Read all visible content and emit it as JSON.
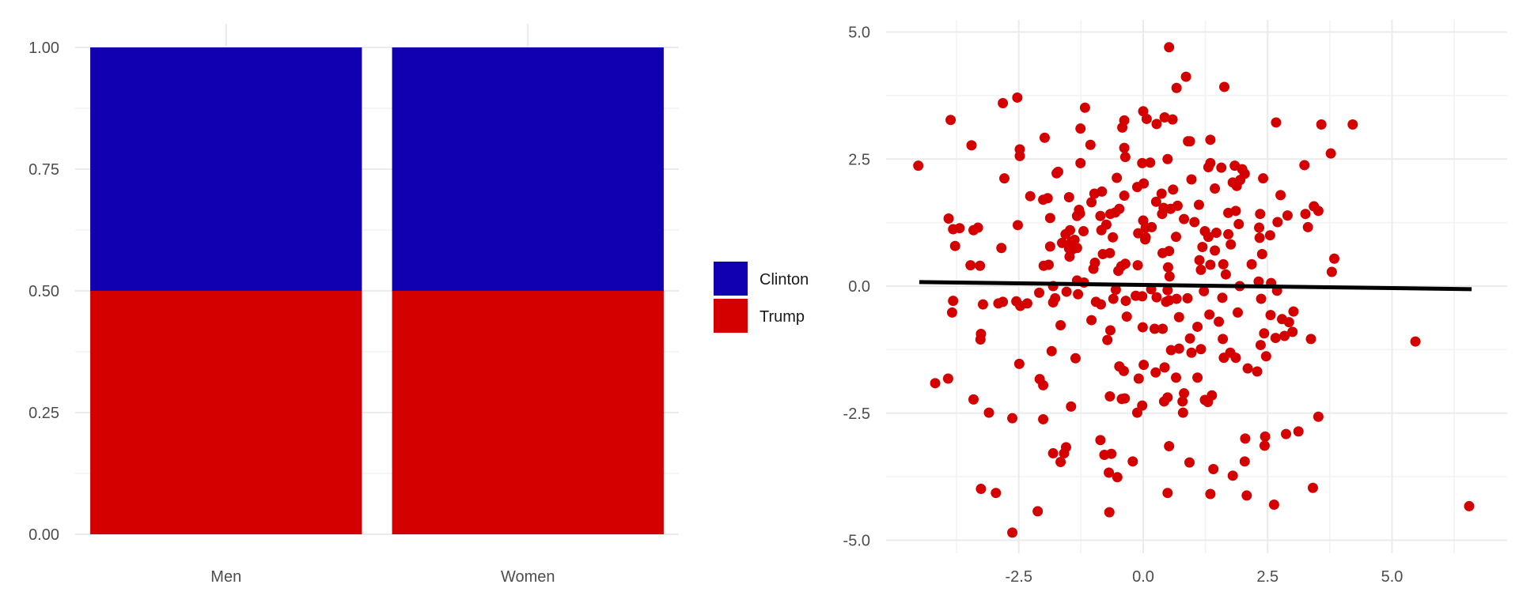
{
  "chart_data": [
    {
      "type": "bar",
      "stacked": true,
      "categories": [
        "Men",
        "Women"
      ],
      "series": [
        {
          "name": "Trump",
          "values": [
            0.5,
            0.5
          ],
          "color": "#d40000"
        },
        {
          "name": "Clinton",
          "values": [
            0.5,
            0.5
          ],
          "color": "#1000b0"
        }
      ],
      "ylim": [
        0,
        1
      ],
      "y_ticks": [
        "0.00",
        "0.25",
        "0.50",
        "0.75",
        "1.00"
      ],
      "x_ticks": [
        "Men",
        "Women"
      ],
      "legend": {
        "position": "right",
        "entries": [
          "Clinton",
          "Trump"
        ]
      },
      "grid": true
    },
    {
      "type": "scatter",
      "xlim": [
        -4.9,
        7.4
      ],
      "ylim": [
        -5.4,
        5.4
      ],
      "x_ticks": [
        "-2.5",
        "0.0",
        "2.5",
        "5.0"
      ],
      "y_ticks": [
        "-5.0",
        "-2.5",
        "0.0",
        "2.5",
        "5.0"
      ],
      "point_color": "#d40000",
      "fit_line": {
        "x": [
          -4.5,
          6.6
        ],
        "y": [
          0.08,
          -0.06
        ],
        "color": "#000000"
      },
      "grid": true,
      "points": [
        [
          0.52,
          4.7
        ],
        [
          0.86,
          4.12
        ],
        [
          1.63,
          3.92
        ],
        [
          0.67,
          3.9
        ],
        [
          -2.53,
          3.71
        ],
        [
          -2.82,
          3.6
        ],
        [
          -1.17,
          3.51
        ],
        [
          0.0,
          3.44
        ],
        [
          0.43,
          3.32
        ],
        [
          0.07,
          3.29
        ],
        [
          0.59,
          3.28
        ],
        [
          -0.38,
          3.26
        ],
        [
          4.21,
          3.18
        ],
        [
          3.58,
          3.18
        ],
        [
          2.67,
          3.22
        ],
        [
          0.27,
          3.19
        ],
        [
          -1.26,
          3.1
        ],
        [
          -0.42,
          3.12
        ],
        [
          -3.87,
          3.27
        ],
        [
          1.35,
          2.88
        ],
        [
          0.9,
          2.85
        ],
        [
          0.94,
          2.85
        ],
        [
          -1.98,
          2.92
        ],
        [
          -0.38,
          2.72
        ],
        [
          -3.45,
          2.77
        ],
        [
          -2.48,
          2.69
        ],
        [
          -1.06,
          2.78
        ],
        [
          -4.52,
          2.37
        ],
        [
          -2.48,
          2.56
        ],
        [
          0.49,
          2.5
        ],
        [
          -0.36,
          2.54
        ],
        [
          3.77,
          2.61
        ],
        [
          -1.26,
          2.42
        ],
        [
          0.14,
          2.43
        ],
        [
          -0.02,
          2.42
        ],
        [
          1.35,
          2.42
        ],
        [
          1.31,
          2.34
        ],
        [
          3.24,
          2.38
        ],
        [
          1.84,
          2.37
        ],
        [
          1.57,
          2.33
        ],
        [
          1.99,
          2.3
        ],
        [
          -1.71,
          2.25
        ],
        [
          2.04,
          2.21
        ],
        [
          -1.74,
          2.22
        ],
        [
          -0.53,
          2.13
        ],
        [
          2.41,
          2.12
        ],
        [
          -2.79,
          2.12
        ],
        [
          0.97,
          2.1
        ],
        [
          1.95,
          2.09
        ],
        [
          1.8,
          2.04
        ],
        [
          0.01,
          2.02
        ],
        [
          -0.12,
          1.95
        ],
        [
          1.88,
          1.97
        ],
        [
          1.44,
          1.92
        ],
        [
          -0.83,
          1.86
        ],
        [
          0.6,
          1.9
        ],
        [
          3.43,
          1.57
        ],
        [
          -2.27,
          1.77
        ],
        [
          -0.98,
          1.82
        ],
        [
          0.37,
          1.82
        ],
        [
          2.76,
          1.79
        ],
        [
          -1.92,
          1.73
        ],
        [
          -2.01,
          1.7
        ],
        [
          -0.38,
          1.78
        ],
        [
          -1.49,
          1.75
        ],
        [
          0.26,
          1.66
        ],
        [
          -1.04,
          1.65
        ],
        [
          1.12,
          1.6
        ],
        [
          0.69,
          1.58
        ],
        [
          0.41,
          1.54
        ],
        [
          0.55,
          1.52
        ],
        [
          -0.48,
          1.52
        ],
        [
          -1.29,
          1.5
        ],
        [
          1.86,
          1.48
        ],
        [
          -0.56,
          1.45
        ],
        [
          3.52,
          1.48
        ],
        [
          1.71,
          1.44
        ],
        [
          -1.27,
          1.43
        ],
        [
          2.35,
          1.42
        ],
        [
          0.38,
          1.42
        ],
        [
          -0.66,
          1.42
        ],
        [
          -1.33,
          1.38
        ],
        [
          2.9,
          1.39
        ],
        [
          -0.86,
          1.38
        ],
        [
          3.26,
          1.42
        ],
        [
          -1.87,
          1.34
        ],
        [
          0.82,
          1.32
        ],
        [
          -3.91,
          1.33
        ],
        [
          -2.52,
          1.2
        ],
        [
          0.0,
          1.29
        ],
        [
          3.31,
          1.16
        ],
        [
          1.92,
          1.22
        ],
        [
          2.7,
          1.26
        ],
        [
          -0.74,
          1.21
        ],
        [
          1.03,
          1.26
        ],
        [
          -3.69,
          1.14
        ],
        [
          -3.41,
          1.1
        ],
        [
          -3.32,
          1.15
        ],
        [
          0.17,
          1.16
        ],
        [
          2.33,
          1.15
        ],
        [
          -3.82,
          1.12
        ],
        [
          0.05,
          1.15
        ],
        [
          -1.2,
          1.08
        ],
        [
          -1.47,
          1.1
        ],
        [
          1.24,
          1.08
        ],
        [
          -0.84,
          1.1
        ],
        [
          -0.1,
          1.04
        ],
        [
          1.71,
          1.02
        ],
        [
          2.55,
          1.0
        ],
        [
          1.47,
          1.05
        ],
        [
          1.31,
          0.97
        ],
        [
          -1.56,
          1.02
        ],
        [
          0.66,
          0.97
        ],
        [
          0.05,
          0.96
        ],
        [
          -0.61,
          0.96
        ],
        [
          2.34,
          0.95
        ],
        [
          -1.38,
          0.91
        ],
        [
          0.04,
          0.92
        ],
        [
          -1.44,
          0.87
        ],
        [
          -1.63,
          0.85
        ],
        [
          -3.78,
          0.79
        ],
        [
          1.76,
          0.82
        ],
        [
          -1.87,
          0.78
        ],
        [
          1.19,
          0.77
        ],
        [
          -1.33,
          0.75
        ],
        [
          -2.85,
          0.75
        ],
        [
          -1.49,
          0.74
        ],
        [
          1.44,
          0.7
        ],
        [
          0.52,
          0.69
        ],
        [
          -1.43,
          0.72
        ],
        [
          0.39,
          0.65
        ],
        [
          -0.67,
          0.65
        ],
        [
          -0.81,
          0.63
        ],
        [
          2.39,
          0.63
        ],
        [
          -1.48,
          0.58
        ],
        [
          3.84,
          0.54
        ],
        [
          1.13,
          0.51
        ],
        [
          -0.97,
          0.46
        ],
        [
          -0.36,
          0.44
        ],
        [
          -1.9,
          0.42
        ],
        [
          1.35,
          0.42
        ],
        [
          2.18,
          0.43
        ],
        [
          -2.0,
          0.4
        ],
        [
          1.61,
          0.43
        ],
        [
          0.5,
          0.37
        ],
        [
          -0.44,
          0.39
        ],
        [
          -0.11,
          0.41
        ],
        [
          -1.0,
          0.34
        ],
        [
          1.16,
          0.32
        ],
        [
          -0.5,
          0.3
        ],
        [
          3.79,
          0.28
        ],
        [
          1.66,
          0.23
        ],
        [
          0.53,
          0.19
        ],
        [
          -1.33,
          0.11
        ],
        [
          2.32,
          0.09
        ],
        [
          2.57,
          0.06
        ],
        [
          -3.47,
          0.41
        ],
        [
          -3.28,
          0.4
        ],
        [
          -1.19,
          0.07
        ],
        [
          1.94,
          0.0
        ],
        [
          -1.81,
          0.0
        ],
        [
          0.16,
          -0.06
        ],
        [
          1.22,
          -0.1
        ],
        [
          0.49,
          -0.08
        ],
        [
          -0.55,
          -0.07
        ],
        [
          2.69,
          -0.09
        ],
        [
          -1.54,
          -0.11
        ],
        [
          -2.09,
          -0.13
        ],
        [
          -1.31,
          -0.16
        ],
        [
          -0.15,
          -0.19
        ],
        [
          -0.02,
          -0.2
        ],
        [
          1.59,
          -0.23
        ],
        [
          2.37,
          -0.25
        ],
        [
          0.27,
          -0.22
        ],
        [
          -1.77,
          -0.24
        ],
        [
          -0.6,
          -0.25
        ],
        [
          0.89,
          -0.24
        ],
        [
          0.67,
          -0.25
        ],
        [
          0.52,
          -0.28
        ],
        [
          0.46,
          -0.31
        ],
        [
          -3.82,
          -0.29
        ],
        [
          -0.35,
          -0.29
        ],
        [
          -2.55,
          -0.3
        ],
        [
          -1.81,
          -0.32
        ],
        [
          -2.82,
          -0.31
        ],
        [
          -2.33,
          -0.34
        ],
        [
          -0.95,
          -0.31
        ],
        [
          -2.91,
          -0.34
        ],
        [
          -2.47,
          -0.39
        ],
        [
          -3.22,
          -0.36
        ],
        [
          -0.85,
          -0.36
        ],
        [
          -3.84,
          -0.52
        ],
        [
          3.02,
          -0.5
        ],
        [
          1.9,
          -0.52
        ],
        [
          1.33,
          -0.56
        ],
        [
          2.56,
          -0.57
        ],
        [
          -0.33,
          -0.6
        ],
        [
          0.72,
          -0.61
        ],
        [
          2.79,
          -0.65
        ],
        [
          -1.04,
          -0.67
        ],
        [
          1.52,
          -0.7
        ],
        [
          2.93,
          -0.71
        ],
        [
          -1.66,
          -0.77
        ],
        [
          1.09,
          -0.8
        ],
        [
          -0.01,
          -0.81
        ],
        [
          0.23,
          -0.84
        ],
        [
          0.39,
          -0.84
        ],
        [
          -0.66,
          -0.87
        ],
        [
          3.0,
          -0.9
        ],
        [
          2.43,
          -0.93
        ],
        [
          -3.26,
          -0.94
        ],
        [
          2.84,
          -0.98
        ],
        [
          2.66,
          -1.02
        ],
        [
          -3.27,
          -1.05
        ],
        [
          0.94,
          -1.03
        ],
        [
          1.6,
          -1.04
        ],
        [
          3.37,
          -1.04
        ],
        [
          -0.72,
          -1.06
        ],
        [
          5.47,
          -1.09
        ],
        [
          2.36,
          -1.16
        ],
        [
          0.72,
          -1.23
        ],
        [
          0.56,
          -1.26
        ],
        [
          -1.84,
          -1.28
        ],
        [
          1.16,
          -1.24
        ],
        [
          0.97,
          -1.31
        ],
        [
          1.75,
          -1.31
        ],
        [
          2.47,
          -1.38
        ],
        [
          1.62,
          -1.41
        ],
        [
          -1.36,
          -1.42
        ],
        [
          1.86,
          -1.41
        ],
        [
          -2.49,
          -1.53
        ],
        [
          0.01,
          -1.55
        ],
        [
          -0.48,
          -1.58
        ],
        [
          0.43,
          -1.6
        ],
        [
          2.1,
          -1.62
        ],
        [
          -0.39,
          -1.67
        ],
        [
          2.29,
          -1.68
        ],
        [
          0.25,
          -1.7
        ],
        [
          -2.08,
          -1.83
        ],
        [
          0.66,
          -1.8
        ],
        [
          -3.92,
          -1.82
        ],
        [
          -0.09,
          -1.82
        ],
        [
          1.09,
          -1.8
        ],
        [
          -4.18,
          -1.91
        ],
        [
          -2.01,
          -1.95
        ],
        [
          0.82,
          -2.11
        ],
        [
          1.38,
          -2.15
        ],
        [
          0.49,
          -2.19
        ],
        [
          -0.67,
          -2.17
        ],
        [
          -3.41,
          -2.23
        ],
        [
          1.24,
          -2.24
        ],
        [
          -0.43,
          -2.22
        ],
        [
          -0.37,
          -2.21
        ],
        [
          0.42,
          -2.27
        ],
        [
          -1.45,
          -2.37
        ],
        [
          0.79,
          -2.27
        ],
        [
          1.3,
          -2.28
        ],
        [
          -0.02,
          -2.35
        ],
        [
          -3.1,
          -2.49
        ],
        [
          -2.63,
          -2.6
        ],
        [
          -2.01,
          -2.62
        ],
        [
          -0.12,
          -2.49
        ],
        [
          0.8,
          -2.49
        ],
        [
          3.52,
          -2.57
        ],
        [
          2.45,
          -2.96
        ],
        [
          2.05,
          -3.0
        ],
        [
          -0.86,
          -3.03
        ],
        [
          -1.55,
          -3.17
        ],
        [
          0.52,
          -3.15
        ],
        [
          -1.81,
          -3.29
        ],
        [
          -0.21,
          -3.45
        ],
        [
          0.93,
          -3.47
        ],
        [
          -0.64,
          -3.3
        ],
        [
          -1.59,
          -3.29
        ],
        [
          -0.78,
          -3.32
        ],
        [
          2.04,
          -3.45
        ],
        [
          2.44,
          -3.14
        ],
        [
          2.87,
          -2.91
        ],
        [
          3.12,
          -2.86
        ],
        [
          -1.66,
          -3.46
        ],
        [
          1.41,
          -3.6
        ],
        [
          -0.69,
          -3.67
        ],
        [
          -0.52,
          -3.76
        ],
        [
          1.8,
          -3.73
        ],
        [
          -3.26,
          -3.99
        ],
        [
          -2.96,
          -4.07
        ],
        [
          3.41,
          -3.97
        ],
        [
          2.63,
          -4.3
        ],
        [
          0.49,
          -4.07
        ],
        [
          2.08,
          -4.12
        ],
        [
          1.35,
          -4.09
        ],
        [
          -2.12,
          -4.43
        ],
        [
          -0.68,
          -4.45
        ],
        [
          -2.63,
          -4.85
        ],
        [
          6.55,
          -4.33
        ]
      ]
    }
  ]
}
